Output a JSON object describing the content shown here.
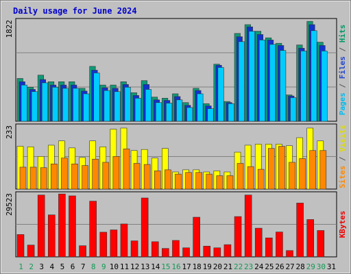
{
  "chart_data": {
    "type": "bar",
    "title": "Daily usage for June 2024",
    "categories": [
      "1",
      "2",
      "3",
      "4",
      "5",
      "6",
      "7",
      "8",
      "9",
      "10",
      "11",
      "12",
      "13",
      "14",
      "15",
      "16",
      "17",
      "18",
      "19",
      "20",
      "21",
      "22",
      "23",
      "24",
      "25",
      "26",
      "27",
      "28",
      "29",
      "30",
      "31"
    ],
    "weekend_days": [
      "1",
      "2",
      "8",
      "9",
      "15",
      "16",
      "22",
      "23",
      "29",
      "30"
    ],
    "panels": [
      {
        "id": "top",
        "max_label": "1822",
        "ymax": 1822,
        "axis_labels": [
          {
            "text": "Pages",
            "color": "#00bbee"
          },
          {
            "text": " / ",
            "color": "#555555"
          },
          {
            "text": "Files",
            "color": "#2244cc"
          },
          {
            "text": " / ",
            "color": "#555555"
          },
          {
            "text": "Hits",
            "color": "#009966"
          }
        ],
        "series": [
          {
            "name": "Hits",
            "color": "#119977",
            "values": [
              780,
              620,
              840,
              720,
              720,
              720,
              600,
              1000,
              660,
              660,
              720,
              520,
              740,
              440,
              420,
              500,
              340,
              600,
              320,
              1040,
              360,
              1600,
              1760,
              1640,
              1520,
              1420,
              480,
              1390,
              1820,
              1440,
              0
            ]
          },
          {
            "name": "Files",
            "color": "#1133cc",
            "values": [
              720,
              580,
              760,
              660,
              660,
              660,
              550,
              930,
              610,
              600,
              670,
              470,
              670,
              390,
              380,
              450,
              290,
              560,
              280,
              1020,
              340,
              1540,
              1720,
              1580,
              1480,
              1380,
              460,
              1330,
              1760,
              1380,
              0
            ]
          },
          {
            "name": "Pages",
            "color": "#00ccff",
            "values": [
              660,
              540,
              700,
              620,
              600,
              600,
              500,
              880,
              560,
              540,
              620,
              420,
              580,
              340,
              330,
              390,
              250,
              500,
              230,
              980,
              320,
              1450,
              1640,
              1480,
              1400,
              1290,
              430,
              1280,
              1650,
              1280,
              0
            ]
          }
        ]
      },
      {
        "id": "mid",
        "max_label": "233",
        "ymax": 233,
        "axis_labels": [
          {
            "text": "Sites",
            "color": "#ff8800"
          },
          {
            "text": " / ",
            "color": "#555555"
          },
          {
            "text": "Visits",
            "color": "#dddd00"
          }
        ],
        "series": [
          {
            "name": "Visits",
            "color": "#ffff00",
            "values": [
              160,
              158,
              122,
              164,
              180,
              154,
              118,
              180,
              158,
              224,
              228,
              144,
              148,
              116,
              152,
              64,
              72,
              72,
              64,
              68,
              64,
              138,
              164,
              168,
              168,
              168,
              162,
              192,
              228,
              180,
              0
            ]
          },
          {
            "name": "Sites",
            "color": "#ff8800",
            "values": [
              82,
              82,
              80,
              94,
              116,
              94,
              88,
              112,
              100,
              122,
              150,
              96,
              92,
              68,
              72,
              56,
              62,
              62,
              56,
              50,
              50,
              96,
              84,
              74,
              152,
              160,
              100,
              114,
              144,
              144,
              0
            ]
          }
        ]
      },
      {
        "id": "bot",
        "max_label": "29523",
        "ymax": 29523,
        "axis_labels": [
          {
            "text": "KBytes",
            "color": "#ee0000"
          }
        ],
        "series": [
          {
            "name": "KBytes",
            "color": "#ff0000",
            "values": [
              10600,
              5600,
              29300,
              19900,
              29800,
              28900,
              5300,
              26400,
              11700,
              12800,
              15600,
              7600,
              27900,
              7200,
              4000,
              7800,
              4300,
              18800,
              5100,
              4300,
              5800,
              19100,
              29300,
              13600,
              9000,
              11800,
              3000,
              25500,
              17700,
              12500,
              0
            ]
          }
        ]
      }
    ]
  }
}
